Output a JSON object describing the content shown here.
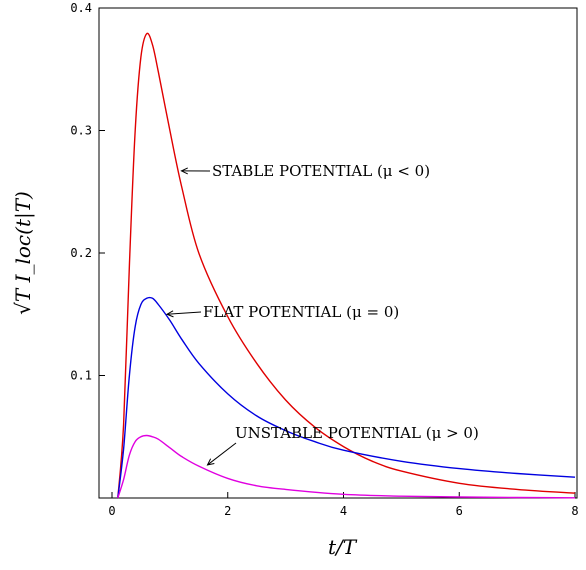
{
  "chart_data": {
    "type": "line",
    "title": "",
    "xlabel": "t/T",
    "ylabel": "√T I_loc(t|T)",
    "xlim": [
      0,
      8
    ],
    "ylim": [
      0,
      0.4
    ],
    "xticks": [
      0,
      2,
      4,
      6,
      8
    ],
    "yticks": [
      0.1,
      0.2,
      0.3,
      0.4
    ],
    "xtick_labels": [
      "0",
      "2",
      "4",
      "6",
      "8"
    ],
    "ytick_labels": [
      "0.1",
      "0.2",
      "0.3",
      "0.4"
    ],
    "grid": false,
    "series": [
      {
        "name": "STABLE POTENTIAL (μ < 0)",
        "color": "#e00000",
        "x": [
          0.1,
          0.2,
          0.3,
          0.4,
          0.5,
          0.6,
          0.7,
          0.8,
          1.0,
          1.2,
          1.5,
          2.0,
          2.5,
          3.0,
          3.5,
          4.0,
          4.5,
          5.0,
          6.0,
          7.0,
          8.0
        ],
        "y": [
          0.0,
          0.06,
          0.19,
          0.3,
          0.36,
          0.379,
          0.37,
          0.348,
          0.3,
          0.255,
          0.2,
          0.148,
          0.11,
          0.08,
          0.058,
          0.042,
          0.03,
          0.022,
          0.012,
          0.007,
          0.004
        ]
      },
      {
        "name": "FLAT POTENTIAL (μ = 0)",
        "color": "#0000e0",
        "x": [
          0.1,
          0.2,
          0.3,
          0.4,
          0.5,
          0.6,
          0.7,
          0.8,
          1.0,
          1.2,
          1.5,
          2.0,
          2.5,
          3.0,
          3.5,
          4.0,
          5.0,
          6.0,
          7.0,
          8.0
        ],
        "y": [
          0.0,
          0.04,
          0.1,
          0.14,
          0.158,
          0.163,
          0.163,
          0.158,
          0.145,
          0.13,
          0.11,
          0.085,
          0.067,
          0.055,
          0.046,
          0.039,
          0.03,
          0.024,
          0.02,
          0.017
        ]
      },
      {
        "name": "UNSTABLE POTENTIAL (μ > 0)",
        "color": "#e000e0",
        "x": [
          0.1,
          0.2,
          0.3,
          0.4,
          0.5,
          0.6,
          0.7,
          0.8,
          1.0,
          1.2,
          1.5,
          2.0,
          2.5,
          3.0,
          4.0,
          5.0,
          6.0,
          7.0,
          8.0
        ],
        "y": [
          0.0,
          0.015,
          0.035,
          0.046,
          0.05,
          0.051,
          0.05,
          0.048,
          0.041,
          0.034,
          0.026,
          0.016,
          0.01,
          0.007,
          0.003,
          0.0015,
          0.0008,
          0.0004,
          0.0002
        ]
      }
    ],
    "annotations": [
      {
        "text": "STABLE POTENTIAL (μ < 0)",
        "series": 0,
        "arrow_to": [
          1.2,
          0.267
        ]
      },
      {
        "text": "FLAT POTENTIAL (μ = 0)",
        "series": 1,
        "arrow_to": [
          0.95,
          0.15
        ]
      },
      {
        "text": "UNSTABLE POTENTIAL (μ > 0)",
        "series": 2,
        "arrow_to": [
          1.65,
          0.027
        ]
      }
    ]
  }
}
